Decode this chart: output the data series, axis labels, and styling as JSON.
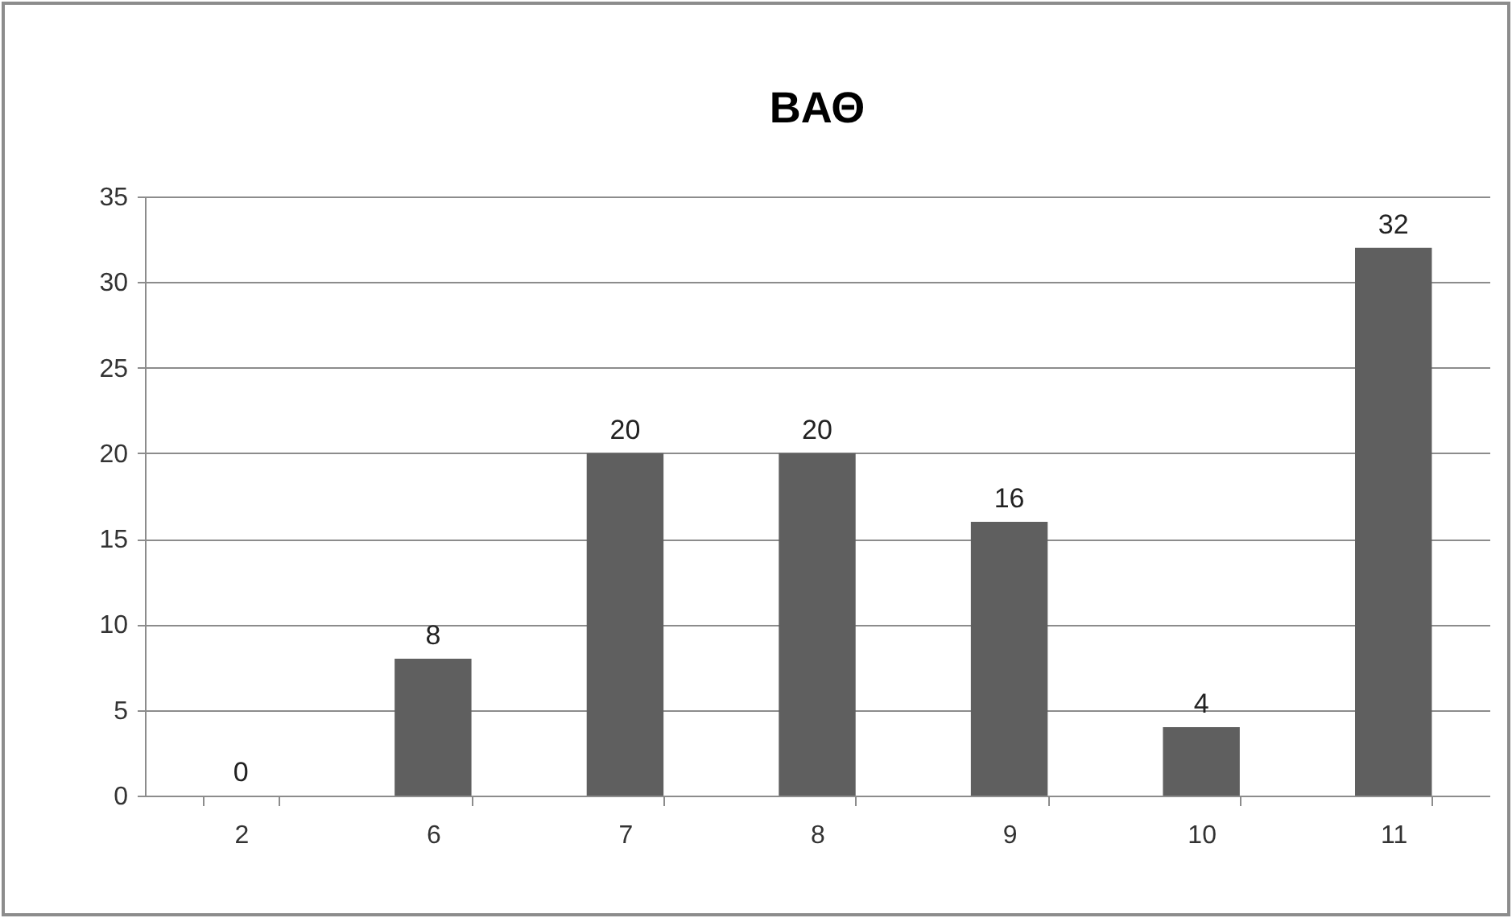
{
  "chart_data": {
    "type": "bar",
    "title": "ΒΑΘ",
    "categories": [
      "2",
      "6",
      "7",
      "8",
      "9",
      "10",
      "11"
    ],
    "values": [
      0,
      8,
      20,
      20,
      16,
      4,
      32
    ],
    "color": "#5f5f5f",
    "ylim": [
      0,
      35
    ],
    "yticks": [
      0,
      5,
      10,
      15,
      20,
      25,
      30,
      35
    ],
    "grid": "y",
    "data_labels": true
  }
}
